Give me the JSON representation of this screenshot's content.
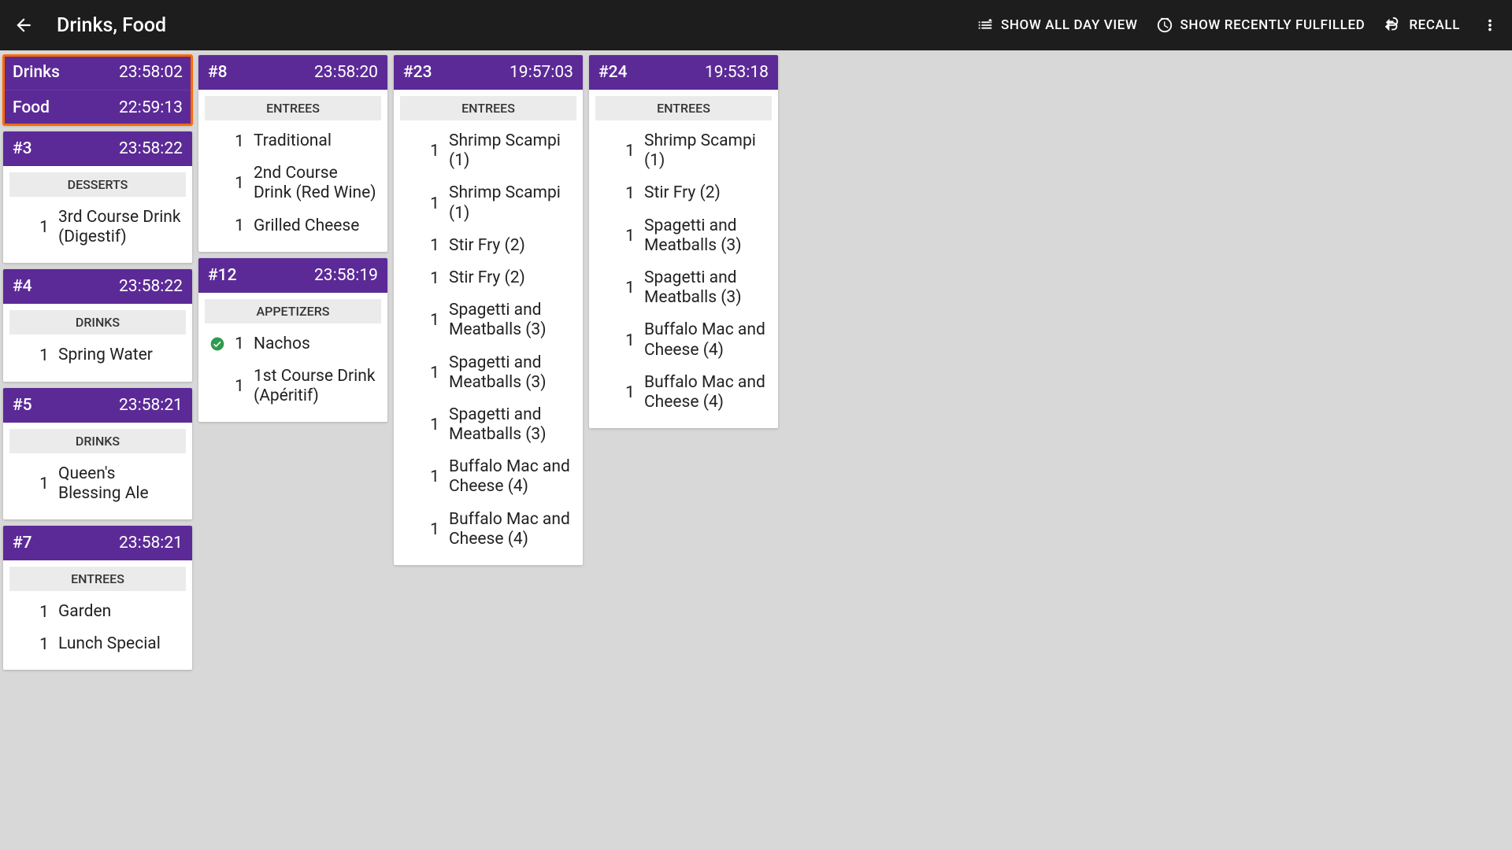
{
  "colors": {
    "topbar_bg": "#1d1d1d",
    "card_header_bg": "#5c2a97",
    "page_bg": "#d8d8d8",
    "highlight_border": "#ff6a00",
    "section_bg": "#ebebeb",
    "check_fill": "#2e9b4f"
  },
  "topbar": {
    "title": "Drinks, Food",
    "actions": {
      "show_all_day": "SHOW ALL DAY VIEW",
      "show_recent": "SHOW RECENTLY FULFILLED",
      "recall": "RECALL"
    }
  },
  "columns": [
    {
      "cards": [
        {
          "highlighted": true,
          "headers": [
            {
              "label": "Drinks",
              "time": "23:58:02"
            },
            {
              "label": "Food",
              "time": "22:59:13"
            }
          ]
        },
        {
          "headers": [
            {
              "label": "#3",
              "time": "23:58:22"
            }
          ],
          "sections": [
            {
              "title": "DESSERTS",
              "lines": [
                {
                  "qty": "1",
                  "name": "3rd Course Drink (Digestif)"
                }
              ]
            }
          ]
        },
        {
          "headers": [
            {
              "label": "#4",
              "time": "23:58:22"
            }
          ],
          "sections": [
            {
              "title": "DRINKS",
              "lines": [
                {
                  "qty": "1",
                  "name": "Spring Water"
                }
              ]
            }
          ]
        },
        {
          "headers": [
            {
              "label": "#5",
              "time": "23:58:21"
            }
          ],
          "sections": [
            {
              "title": "DRINKS",
              "lines": [
                {
                  "qty": "1",
                  "name": "Queen's Blessing Ale"
                }
              ]
            }
          ]
        },
        {
          "headers": [
            {
              "label": "#7",
              "time": "23:58:21"
            }
          ],
          "sections": [
            {
              "title": "ENTREES",
              "lines": [
                {
                  "qty": "1",
                  "name": "Garden"
                },
                {
                  "qty": "1",
                  "name": "Lunch Special"
                }
              ]
            }
          ]
        }
      ]
    },
    {
      "cards": [
        {
          "headers": [
            {
              "label": "#8",
              "time": "23:58:20"
            }
          ],
          "sections": [
            {
              "title": "ENTREES",
              "lines": [
                {
                  "qty": "1",
                  "name": "Traditional"
                },
                {
                  "qty": "1",
                  "name": "2nd Course Drink (Red Wine)"
                },
                {
                  "qty": "1",
                  "name": "Grilled Cheese"
                }
              ]
            }
          ]
        },
        {
          "headers": [
            {
              "label": "#12",
              "time": "23:58:19"
            }
          ],
          "sections": [
            {
              "title": "APPETIZERS",
              "lines": [
                {
                  "qty": "1",
                  "name": "Nachos",
                  "checked": true
                },
                {
                  "qty": "1",
                  "name": "1st Course Drink (Apéritif)"
                }
              ]
            }
          ]
        }
      ]
    },
    {
      "cards": [
        {
          "headers": [
            {
              "label": "#23",
              "time": "19:57:03"
            }
          ],
          "sections": [
            {
              "title": "ENTREES",
              "lines": [
                {
                  "qty": "1",
                  "name": "Shrimp Scampi (1)"
                },
                {
                  "qty": "1",
                  "name": "Shrimp Scampi (1)"
                },
                {
                  "qty": "1",
                  "name": "Stir Fry (2)"
                },
                {
                  "qty": "1",
                  "name": "Stir Fry (2)"
                },
                {
                  "qty": "1",
                  "name": "Spagetti and Meatballs (3)"
                },
                {
                  "qty": "1",
                  "name": "Spagetti and Meatballs (3)"
                },
                {
                  "qty": "1",
                  "name": "Spagetti and Meatballs (3)"
                },
                {
                  "qty": "1",
                  "name": "Buffalo Mac and Cheese (4)"
                },
                {
                  "qty": "1",
                  "name": "Buffalo Mac and Cheese (4)"
                }
              ]
            }
          ]
        }
      ]
    },
    {
      "cards": [
        {
          "headers": [
            {
              "label": "#24",
              "time": "19:53:18"
            }
          ],
          "sections": [
            {
              "title": "ENTREES",
              "lines": [
                {
                  "qty": "1",
                  "name": "Shrimp Scampi (1)"
                },
                {
                  "qty": "1",
                  "name": "Stir Fry (2)"
                },
                {
                  "qty": "1",
                  "name": "Spagetti and Meatballs (3)"
                },
                {
                  "qty": "1",
                  "name": "Spagetti and Meatballs (3)"
                },
                {
                  "qty": "1",
                  "name": "Buffalo Mac and Cheese (4)"
                },
                {
                  "qty": "1",
                  "name": "Buffalo Mac and Cheese (4)"
                }
              ]
            }
          ]
        }
      ]
    }
  ]
}
